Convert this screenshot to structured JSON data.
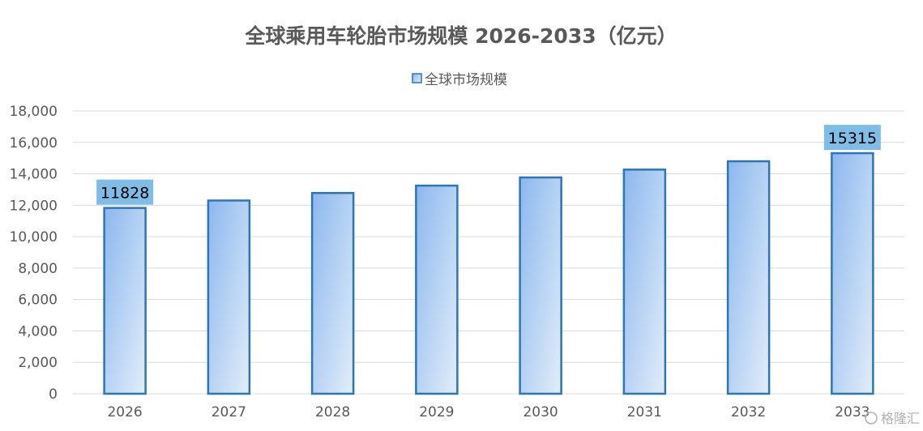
{
  "chart_data": {
    "type": "bar",
    "title": "全球乘用车轮胎市场规模 2026-2033（亿元）",
    "legend": [
      "全球市场规模"
    ],
    "legend_position": "top",
    "categories": [
      "2026",
      "2027",
      "2028",
      "2029",
      "2030",
      "2031",
      "2032",
      "2033"
    ],
    "series": [
      {
        "name": "全球市场规模",
        "values": [
          11828,
          12300,
          12780,
          13250,
          13770,
          14270,
          14800,
          15315
        ]
      }
    ],
    "data_labels": [
      {
        "index": 0,
        "text": "11828"
      },
      {
        "index": 7,
        "text": "15315"
      }
    ],
    "ylim": [
      0,
      18000
    ],
    "yticks": [
      "0",
      "2,000",
      "4,000",
      "6,000",
      "8,000",
      "10,000",
      "12,000",
      "14,000",
      "16,000",
      "18,000"
    ],
    "grid": true,
    "bar_color": "#2e75b6"
  },
  "watermark": "格隆汇"
}
